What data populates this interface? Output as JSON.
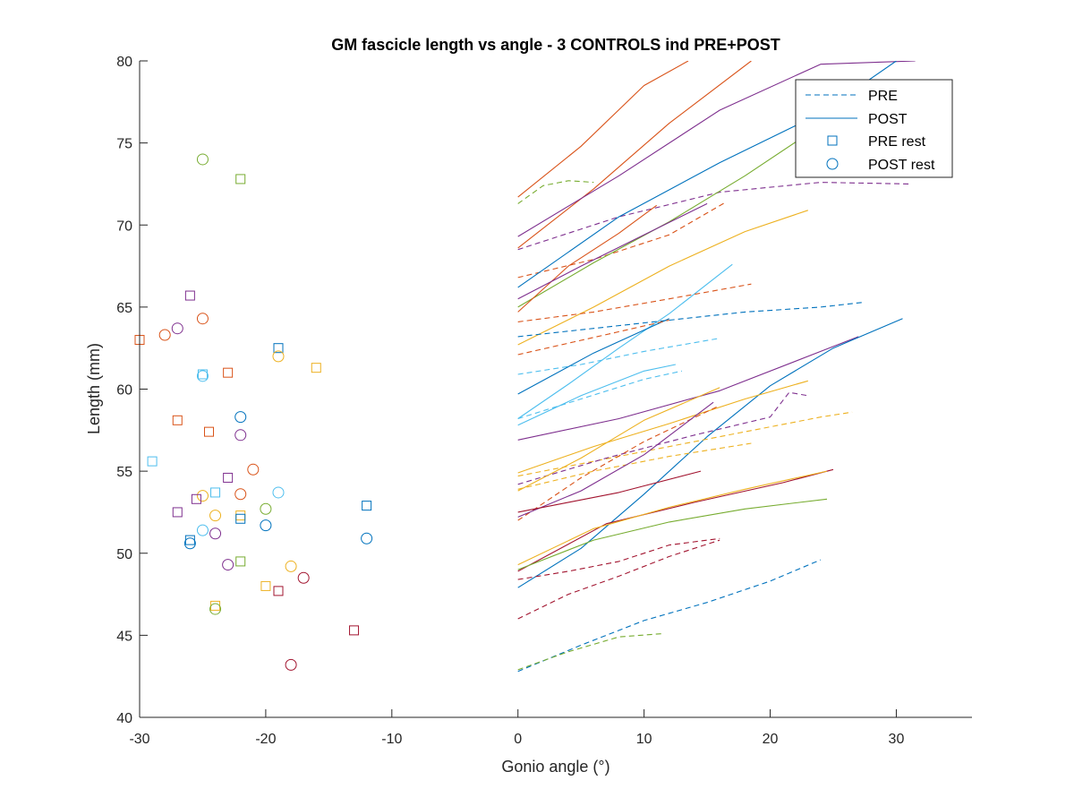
{
  "chart_data": {
    "type": "line",
    "title": "GM fascicle length vs angle - 3 CONTROLS ind PRE+POST",
    "xlabel": "Gonio angle (°)",
    "ylabel": "Length (mm)",
    "xlim": [
      -30,
      36
    ],
    "ylim": [
      40,
      80
    ],
    "xticks": [
      -30,
      -20,
      -10,
      0,
      10,
      20,
      30
    ],
    "yticks": [
      40,
      45,
      50,
      55,
      60,
      65,
      70,
      75,
      80
    ],
    "grid": false,
    "legend_position": "top-right",
    "legend": [
      {
        "label": "PRE",
        "marker": "dashed-line",
        "color": "#0072BD"
      },
      {
        "label": "POST",
        "marker": "solid-line",
        "color": "#0072BD"
      },
      {
        "label": "PRE rest",
        "marker": "square",
        "color": "#0072BD"
      },
      {
        "label": "POST rest",
        "marker": "circle",
        "color": "#0072BD"
      }
    ],
    "series": [
      {
        "color": "#D95319",
        "style": "solid",
        "x": [
          0,
          5,
          10,
          13.5
        ],
        "y": [
          71.7,
          74.8,
          78.5,
          80
        ]
      },
      {
        "color": "#D95319",
        "style": "solid",
        "x": [
          0,
          6,
          12,
          18.5
        ],
        "y": [
          68.6,
          72.2,
          76.2,
          80
        ]
      },
      {
        "color": "#7E2F8E",
        "style": "solid",
        "x": [
          0,
          8,
          16,
          24,
          31.5
        ],
        "y": [
          69.3,
          73,
          77,
          79.8,
          80
        ]
      },
      {
        "color": "#77AC30",
        "style": "dashed",
        "x": [
          0,
          2,
          4,
          6
        ],
        "y": [
          71.3,
          72.4,
          72.7,
          72.6
        ]
      },
      {
        "color": "#7E2F8E",
        "style": "dashed",
        "x": [
          0,
          8,
          16,
          24,
          31
        ],
        "y": [
          68.5,
          70.5,
          72,
          72.6,
          72.5
        ]
      },
      {
        "color": "#D95319",
        "style": "dashed",
        "x": [
          0,
          6,
          12,
          16.5
        ],
        "y": [
          66.8,
          67.9,
          69.4,
          71.4
        ]
      },
      {
        "color": "#0072BD",
        "style": "solid",
        "x": [
          0,
          8,
          16,
          24,
          30
        ],
        "y": [
          66.2,
          70.5,
          73.8,
          76.8,
          80
        ]
      },
      {
        "color": "#77AC30",
        "style": "solid",
        "x": [
          0,
          6,
          12,
          18,
          22.5
        ],
        "y": [
          65,
          67.7,
          70.2,
          73,
          75.3
        ]
      },
      {
        "color": "#D95319",
        "style": "solid",
        "x": [
          0,
          4,
          8,
          11
        ],
        "y": [
          64.7,
          67.5,
          69.5,
          71.2
        ]
      },
      {
        "color": "#EDB120",
        "style": "solid",
        "x": [
          0,
          6,
          12,
          18,
          23
        ],
        "y": [
          62.7,
          65,
          67.5,
          69.6,
          70.9
        ]
      },
      {
        "color": "#7E2F8E",
        "style": "solid",
        "x": [
          0,
          5,
          10,
          15
        ],
        "y": [
          65.5,
          67.5,
          69.4,
          71.3
        ]
      },
      {
        "color": "#4DBEEE",
        "style": "solid",
        "x": [
          0,
          4,
          8,
          12,
          17
        ],
        "y": [
          58.2,
          60.3,
          62.5,
          64.6,
          67.6
        ]
      },
      {
        "color": "#0072BD",
        "style": "dashed",
        "x": [
          0,
          6,
          12,
          18,
          24,
          27.5
        ],
        "y": [
          63.2,
          63.7,
          64.2,
          64.7,
          65,
          65.3
        ]
      },
      {
        "color": "#D95319",
        "style": "dashed",
        "x": [
          0,
          6,
          12,
          18.5
        ],
        "y": [
          64.1,
          64.7,
          65.5,
          66.4
        ]
      },
      {
        "color": "#4DBEEE",
        "style": "dashed",
        "x": [
          0,
          5,
          10,
          16
        ],
        "y": [
          60.9,
          61.5,
          62.3,
          63.1
        ]
      },
      {
        "color": "#0072BD",
        "style": "solid",
        "x": [
          0,
          6,
          12
        ],
        "y": [
          59.7,
          62.2,
          64.3
        ]
      },
      {
        "color": "#D95319",
        "style": "dashed",
        "x": [
          0,
          4,
          8,
          12
        ],
        "y": [
          62.1,
          62.8,
          63.5,
          64.2
        ]
      },
      {
        "color": "#4DBEEE",
        "style": "solid",
        "x": [
          0,
          5,
          10,
          12.5
        ],
        "y": [
          57.8,
          59.6,
          61.1,
          61.5
        ]
      },
      {
        "color": "#4DBEEE",
        "style": "dashed",
        "x": [
          0,
          5,
          10,
          13
        ],
        "y": [
          58.2,
          59.4,
          60.6,
          61.1
        ]
      },
      {
        "color": "#7E2F8E",
        "style": "solid",
        "x": [
          0,
          8,
          16,
          24,
          27
        ],
        "y": [
          56.9,
          58.2,
          59.9,
          62.3,
          63.2
        ]
      },
      {
        "color": "#0072BD",
        "style": "solid",
        "x": [
          0,
          5,
          10,
          15,
          20,
          25,
          30.5
        ],
        "y": [
          47.9,
          50.3,
          53.6,
          57.1,
          60.2,
          62.5,
          64.3
        ]
      },
      {
        "color": "#EDB120",
        "style": "solid",
        "x": [
          0,
          6,
          12,
          18,
          23
        ],
        "y": [
          54.9,
          56.5,
          57.9,
          59.4,
          60.5
        ]
      },
      {
        "color": "#EDB120",
        "style": "dashed",
        "x": [
          0,
          8,
          16,
          24,
          26.5
        ],
        "y": [
          54.7,
          55.9,
          57.1,
          58.3,
          58.6
        ]
      },
      {
        "color": "#7E2F8E",
        "style": "dashed",
        "x": [
          0,
          7,
          14,
          20,
          21.5,
          23
        ],
        "y": [
          54.2,
          55.8,
          57.2,
          58.3,
          59.8,
          59.6
        ]
      },
      {
        "color": "#EDB120",
        "style": "solid",
        "x": [
          0,
          5,
          10,
          16
        ],
        "y": [
          53.8,
          55.8,
          58.1,
          60.1
        ]
      },
      {
        "color": "#D95319",
        "style": "dashed",
        "x": [
          0,
          5,
          10,
          16
        ],
        "y": [
          52,
          54.6,
          56.8,
          59
        ]
      },
      {
        "color": "#EDB120",
        "style": "dashed",
        "x": [
          0,
          6,
          12,
          18.5
        ],
        "y": [
          53.9,
          55,
          55.9,
          56.7
        ]
      },
      {
        "color": "#7E2F8E",
        "style": "solid",
        "x": [
          0,
          5,
          10,
          15.5
        ],
        "y": [
          52.2,
          53.8,
          56,
          59.2
        ]
      },
      {
        "color": "#A2142F",
        "style": "solid",
        "x": [
          0,
          4,
          8,
          14.5
        ],
        "y": [
          52.5,
          53.1,
          53.7,
          55
        ]
      },
      {
        "color": "#A2142F",
        "style": "solid",
        "x": [
          0,
          7,
          14,
          21,
          25
        ],
        "y": [
          48.9,
          51.8,
          53.1,
          54.3,
          55.1
        ]
      },
      {
        "color": "#EDB120",
        "style": "solid",
        "x": [
          0,
          6,
          12,
          18,
          24.5
        ],
        "y": [
          49.3,
          51.5,
          52.8,
          53.9,
          55
        ]
      },
      {
        "color": "#77AC30",
        "style": "solid",
        "x": [
          0,
          6,
          12,
          18,
          24.5
        ],
        "y": [
          49,
          50.8,
          51.9,
          52.7,
          53.3
        ]
      },
      {
        "color": "#A2142F",
        "style": "dashed",
        "x": [
          0,
          4,
          8,
          12,
          16
        ],
        "y": [
          48.4,
          48.9,
          49.5,
          50.5,
          50.9
        ]
      },
      {
        "color": "#A2142F",
        "style": "dashed",
        "x": [
          0,
          4,
          8,
          12,
          16
        ],
        "y": [
          46,
          47.5,
          48.6,
          49.8,
          50.8
        ]
      },
      {
        "color": "#0072BD",
        "style": "dashed",
        "x": [
          0,
          5,
          10,
          15,
          20,
          24
        ],
        "y": [
          42.8,
          44.4,
          45.9,
          47,
          48.3,
          49.6
        ]
      },
      {
        "color": "#77AC30",
        "style": "dashed",
        "x": [
          0,
          4,
          8,
          11.5
        ],
        "y": [
          42.9,
          44,
          44.9,
          45.1
        ]
      }
    ],
    "rest_points": [
      {
        "marker": "circle",
        "color": "#77AC30",
        "x": -25,
        "y": 74
      },
      {
        "marker": "square",
        "color": "#77AC30",
        "x": -22,
        "y": 72.8
      },
      {
        "marker": "square",
        "color": "#7E2F8E",
        "x": -26,
        "y": 65.7
      },
      {
        "marker": "circle",
        "color": "#D95319",
        "x": -25,
        "y": 64.3
      },
      {
        "marker": "circle",
        "color": "#D95319",
        "x": -28,
        "y": 63.3
      },
      {
        "marker": "circle",
        "color": "#7E2F8E",
        "x": -27,
        "y": 63.7
      },
      {
        "marker": "square",
        "color": "#D95319",
        "x": -30,
        "y": 63
      },
      {
        "marker": "square",
        "color": "#0072BD",
        "x": -19,
        "y": 62.5
      },
      {
        "marker": "circle",
        "color": "#EDB120",
        "x": -19,
        "y": 62
      },
      {
        "marker": "square",
        "color": "#EDB120",
        "x": -16,
        "y": 61.3
      },
      {
        "marker": "square",
        "color": "#D95319",
        "x": -23,
        "y": 61
      },
      {
        "marker": "square",
        "color": "#4DBEEE",
        "x": -25,
        "y": 60.9
      },
      {
        "marker": "circle",
        "color": "#4DBEEE",
        "x": -25,
        "y": 60.8
      },
      {
        "marker": "circle",
        "color": "#0072BD",
        "x": -22,
        "y": 58.3
      },
      {
        "marker": "square",
        "color": "#D95319",
        "x": -27,
        "y": 58.1
      },
      {
        "marker": "square",
        "color": "#D95319",
        "x": -24.5,
        "y": 57.4
      },
      {
        "marker": "circle",
        "color": "#7E2F8E",
        "x": -22,
        "y": 57.2
      },
      {
        "marker": "square",
        "color": "#4DBEEE",
        "x": -29,
        "y": 55.6
      },
      {
        "marker": "circle",
        "color": "#D95319",
        "x": -21,
        "y": 55.1
      },
      {
        "marker": "square",
        "color": "#7E2F8E",
        "x": -23,
        "y": 54.6
      },
      {
        "marker": "square",
        "color": "#4DBEEE",
        "x": -24,
        "y": 53.7
      },
      {
        "marker": "circle",
        "color": "#4DBEEE",
        "x": -19,
        "y": 53.7
      },
      {
        "marker": "circle",
        "color": "#D95319",
        "x": -22,
        "y": 53.6
      },
      {
        "marker": "circle",
        "color": "#EDB120",
        "x": -25,
        "y": 53.5
      },
      {
        "marker": "square",
        "color": "#7E2F8E",
        "x": -25.5,
        "y": 53.3
      },
      {
        "marker": "square",
        "color": "#0072BD",
        "x": -12,
        "y": 52.9
      },
      {
        "marker": "circle",
        "color": "#77AC30",
        "x": -20,
        "y": 52.7
      },
      {
        "marker": "square",
        "color": "#7E2F8E",
        "x": -27,
        "y": 52.5
      },
      {
        "marker": "square",
        "color": "#EDB120",
        "x": -22,
        "y": 52.3
      },
      {
        "marker": "circle",
        "color": "#EDB120",
        "x": -24,
        "y": 52.3
      },
      {
        "marker": "square",
        "color": "#0072BD",
        "x": -22,
        "y": 52.1
      },
      {
        "marker": "circle",
        "color": "#0072BD",
        "x": -20,
        "y": 51.7
      },
      {
        "marker": "circle",
        "color": "#4DBEEE",
        "x": -25,
        "y": 51.4
      },
      {
        "marker": "circle",
        "color": "#7E2F8E",
        "x": -24,
        "y": 51.2
      },
      {
        "marker": "circle",
        "color": "#0072BD",
        "x": -12,
        "y": 50.9
      },
      {
        "marker": "square",
        "color": "#0072BD",
        "x": -26,
        "y": 50.8
      },
      {
        "marker": "circle",
        "color": "#0072BD",
        "x": -26,
        "y": 50.6
      },
      {
        "marker": "square",
        "color": "#77AC30",
        "x": -22,
        "y": 49.5
      },
      {
        "marker": "circle",
        "color": "#7E2F8E",
        "x": -23,
        "y": 49.3
      },
      {
        "marker": "circle",
        "color": "#EDB120",
        "x": -18,
        "y": 49.2
      },
      {
        "marker": "circle",
        "color": "#A2142F",
        "x": -17,
        "y": 48.5
      },
      {
        "marker": "square",
        "color": "#EDB120",
        "x": -20,
        "y": 48
      },
      {
        "marker": "square",
        "color": "#A2142F",
        "x": -19,
        "y": 47.7
      },
      {
        "marker": "square",
        "color": "#EDB120",
        "x": -24,
        "y": 46.8
      },
      {
        "marker": "circle",
        "color": "#77AC30",
        "x": -24,
        "y": 46.6
      },
      {
        "marker": "square",
        "color": "#A2142F",
        "x": -13,
        "y": 45.3
      },
      {
        "marker": "circle",
        "color": "#A2142F",
        "x": -18,
        "y": 43.2
      }
    ]
  }
}
